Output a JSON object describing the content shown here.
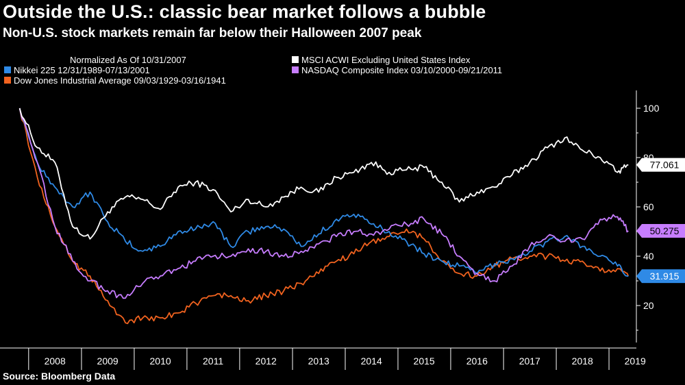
{
  "title": "Outside the U.S.: classic bear market follows a bubble",
  "subtitle": "Non-U.S. stock markets remain far below their Halloween 2007 peak",
  "source": "Source: Bloomberg Data",
  "colors": {
    "background": "#000000",
    "msci": "#ffffff",
    "nikkei": "#2f8ae6",
    "nasdaq": "#c77dff",
    "dow": "#f2631f"
  },
  "chart_data": {
    "type": "line",
    "legend_header": "Normalized As Of 10/31/2007",
    "legend_position": "top-left",
    "x": [
      "2007-10-31",
      "2008-03-01",
      "2008-07-01",
      "2008-11-01",
      "2009-03-01",
      "2009-07-01",
      "2009-11-01",
      "2010-03-01",
      "2010-07-01",
      "2010-11-01",
      "2011-03-01",
      "2011-07-01",
      "2011-11-01",
      "2012-03-01",
      "2012-07-01",
      "2012-11-01",
      "2013-03-01",
      "2013-07-01",
      "2013-11-01",
      "2014-03-01",
      "2014-07-01",
      "2014-11-01",
      "2015-03-01",
      "2015-07-01",
      "2015-11-01",
      "2016-03-01",
      "2016-07-01",
      "2016-11-01",
      "2017-03-01",
      "2017-07-01",
      "2017-11-01",
      "2018-03-01",
      "2018-07-01",
      "2018-11-01",
      "2019-03-01",
      "2019-05-15"
    ],
    "series": [
      {
        "name": "MSCI ACWI Excluding United States Index",
        "color": "#ffffff",
        "end_label": "77.061",
        "values": [
          100,
          84,
          78,
          52,
          47,
          58,
          64,
          63,
          59,
          68,
          70,
          67,
          58,
          63,
          60,
          64,
          68,
          66,
          72,
          74,
          78,
          74,
          75,
          76,
          70,
          62,
          66,
          68,
          73,
          78,
          84,
          88,
          83,
          80,
          74,
          77.061
        ]
      },
      {
        "name": "Nikkei 225 12/31/1989-07/13/2001",
        "color": "#2f8ae6",
        "end_label": "31.915",
        "values": [
          100,
          78,
          68,
          60,
          66,
          54,
          46,
          42,
          44,
          50,
          51,
          54,
          44,
          50,
          52,
          51,
          44,
          49,
          55,
          57,
          53,
          50,
          46,
          41,
          38,
          36,
          33,
          37,
          39,
          42,
          46,
          48,
          44,
          40,
          36,
          31.915
        ]
      },
      {
        "name": "NASDAQ Composite Index 03/10/2000-09/21/2011",
        "color": "#c77dff",
        "end_label": "50.275",
        "values": [
          100,
          78,
          52,
          38,
          30,
          26,
          23,
          29,
          32,
          35,
          38,
          40,
          40,
          43,
          42,
          40,
          42,
          45,
          48,
          50,
          49,
          51,
          53,
          55,
          49,
          40,
          33,
          30,
          36,
          44,
          48,
          46,
          47,
          55,
          56,
          50.275
        ]
      },
      {
        "name": "Dow Jones Industrial Average 09/03/1929-03/16/1941",
        "color": "#f2631f",
        "end_label": "",
        "values": [
          100,
          72,
          52,
          38,
          32,
          22,
          13,
          15,
          15,
          17,
          21,
          24,
          24,
          22,
          24,
          26,
          29,
          33,
          38,
          41,
          46,
          48,
          51,
          47,
          38,
          33,
          32,
          36,
          39,
          40,
          40,
          38,
          38,
          34,
          35,
          32
        ]
      }
    ],
    "x_tick_labels": [
      "2008",
      "2009",
      "2010",
      "2011",
      "2012",
      "2013",
      "2014",
      "2015",
      "2016",
      "2017",
      "2018",
      "2019"
    ],
    "y_ticks": [
      20,
      40,
      60,
      80,
      100
    ],
    "ylim": [
      5,
      105
    ],
    "xlabel": "",
    "ylabel": ""
  }
}
